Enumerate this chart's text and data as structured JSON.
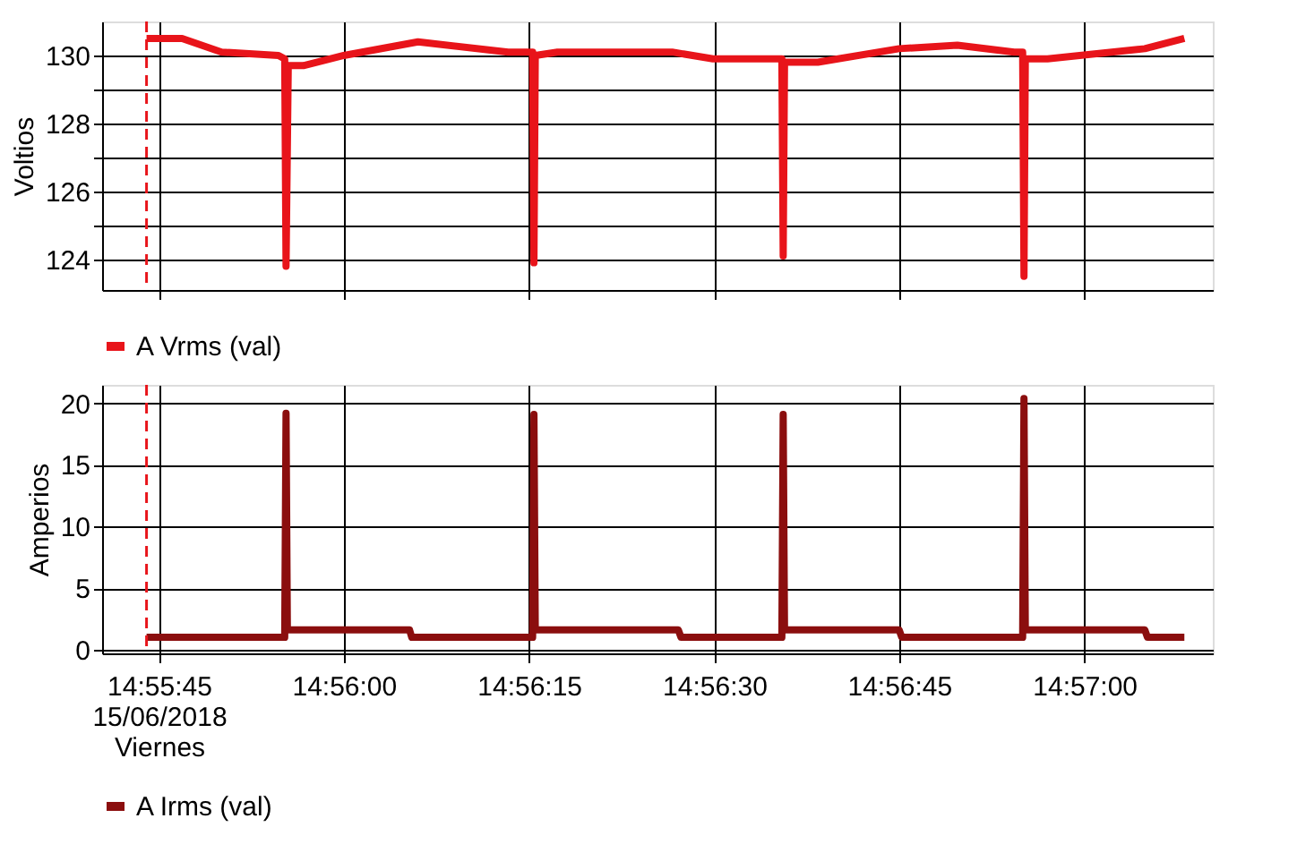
{
  "chart_data": [
    {
      "type": "line",
      "ylabel": "Voltios",
      "xlim": [
        14.92789,
        14.95289
      ],
      "xticks": [
        {
          "value": 14.92917,
          "label": null
        },
        {
          "value": 14.93333,
          "label": null
        },
        {
          "value": 14.9375,
          "label": null
        },
        {
          "value": 14.94167,
          "label": null
        },
        {
          "value": 14.94583,
          "label": null
        },
        {
          "value": 14.95,
          "label": null
        }
      ],
      "ylim": [
        123.1,
        131.0
      ],
      "yticks": [
        124,
        {
          "value": 125,
          "label": null
        },
        126,
        {
          "value": 127,
          "label": null
        },
        128,
        {
          "value": 129,
          "label": null
        },
        130
      ],
      "grid": true,
      "legend": "bottom",
      "tick_labels": "y",
      "line_style": "solid",
      "marker": "none",
      "ref_lines": [
        {
          "axis": "x",
          "value": 14.92889,
          "label": null,
          "color": "#e8141a",
          "line_style": "dashed"
        }
      ],
      "series": [
        {
          "name": "A Vrms (val)",
          "color": "#e8141a",
          "x": [
            14.92889,
            14.92969,
            14.93058,
            14.93186,
            14.932,
            14.93203,
            14.93208,
            14.93242,
            14.93333,
            14.935,
            14.93703,
            14.93758,
            14.93761,
            14.93764,
            14.93814,
            14.94072,
            14.94164,
            14.94308,
            14.94319,
            14.94322,
            14.94325,
            14.944,
            14.94583,
            14.94714,
            14.94842,
            14.94861,
            14.94864,
            14.94867,
            14.94917,
            14.95136,
            14.95225
          ],
          "values": [
            130.5,
            130.5,
            130.1,
            130.0,
            129.9,
            123.8,
            129.7,
            129.7,
            130.0,
            130.4,
            130.1,
            130.1,
            123.9,
            130.0,
            130.1,
            130.1,
            129.9,
            129.9,
            129.9,
            124.1,
            129.8,
            129.8,
            130.2,
            130.3,
            130.1,
            130.1,
            123.5,
            129.9,
            129.9,
            130.2,
            130.5
          ]
        }
      ]
    },
    {
      "type": "line",
      "ylabel": "Amperios",
      "xlim": [
        14.92789,
        14.95289
      ],
      "xticks": [
        {
          "value": 14.92917,
          "label": "14:55:45\n15/06/2018\nViernes"
        },
        {
          "value": 14.93333,
          "label": "14:56:00"
        },
        {
          "value": 14.9375,
          "label": "14:56:15"
        },
        {
          "value": 14.94167,
          "label": "14:56:30"
        },
        {
          "value": 14.94583,
          "label": "14:56:45"
        },
        {
          "value": 14.95,
          "label": "14:57:00"
        }
      ],
      "ylim": [
        -0.3,
        21.5
      ],
      "yticks": [
        0,
        5,
        10,
        15,
        20
      ],
      "grid": true,
      "legend": "bottom",
      "line_style": "solid",
      "marker": "none",
      "ref_lines": [
        {
          "axis": "x",
          "value": 14.92889,
          "label": null,
          "color": "#e8141a",
          "line_style": "dashed"
        }
      ],
      "series": [
        {
          "name": "A Irms (val)",
          "color": "#8b0e0e",
          "x": [
            14.92889,
            14.932,
            14.93203,
            14.93206,
            14.93481,
            14.93486,
            14.93758,
            14.93761,
            14.93764,
            14.94086,
            14.94092,
            14.94319,
            14.94322,
            14.94325,
            14.94583,
            14.94589,
            14.94861,
            14.94864,
            14.94867,
            14.95136,
            14.95142,
            14.95225
          ],
          "values": [
            1.0,
            1.0,
            19.2,
            1.6,
            1.6,
            1.0,
            1.0,
            19.1,
            1.6,
            1.6,
            1.0,
            1.0,
            19.1,
            1.6,
            1.6,
            1.0,
            1.0,
            20.4,
            1.6,
            1.6,
            1.0,
            1.0
          ]
        }
      ]
    }
  ]
}
